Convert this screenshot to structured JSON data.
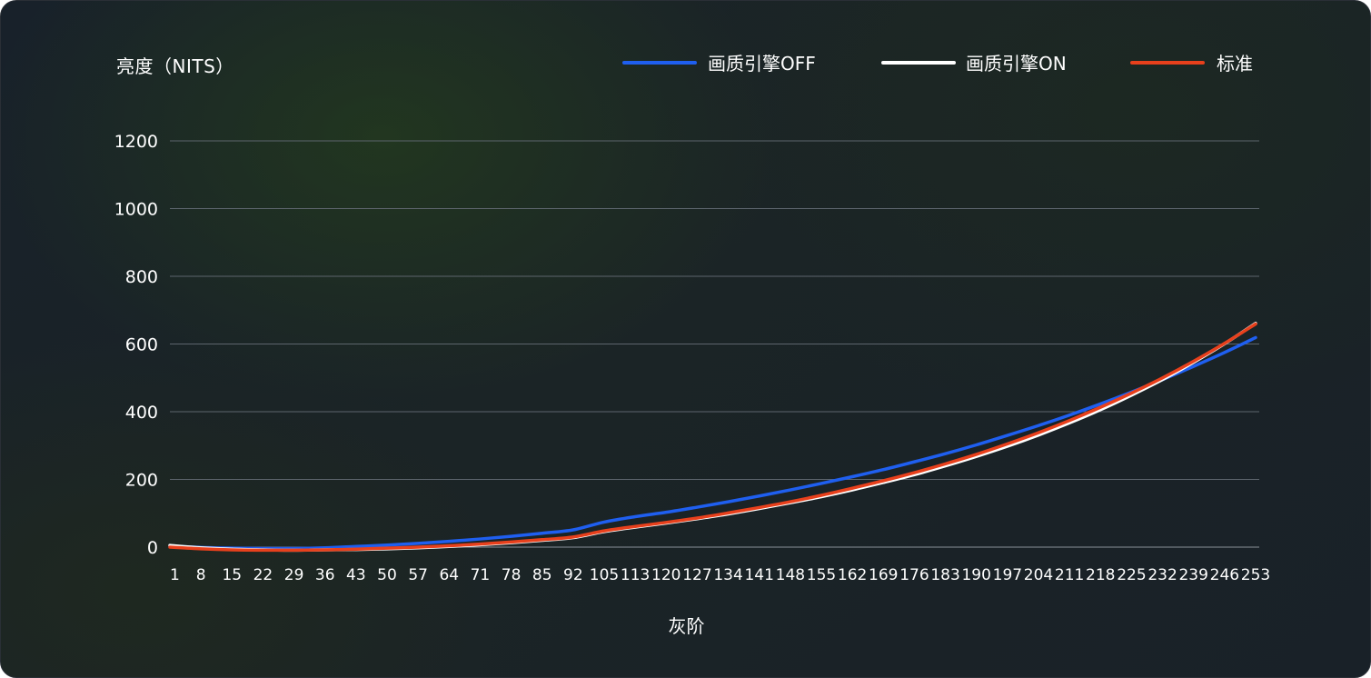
{
  "chart_data": {
    "type": "line",
    "ylabel": "亮度（NITS）",
    "xlabel": "灰阶",
    "ylim": [
      0,
      1200
    ],
    "yticks": [
      0,
      200,
      400,
      600,
      800,
      1000,
      1200
    ],
    "x": [
      1,
      8,
      15,
      22,
      29,
      36,
      43,
      50,
      57,
      64,
      71,
      78,
      85,
      92,
      105,
      113,
      120,
      127,
      134,
      141,
      148,
      155,
      162,
      169,
      176,
      183,
      190,
      197,
      204,
      211,
      218,
      225,
      232,
      239,
      246,
      253
    ],
    "legend_position": "top-right",
    "grid": true,
    "series": [
      {
        "name": "画质引擎OFF",
        "color": "#1f5ff0",
        "values": [
          3,
          -1,
          -3,
          -4,
          -4,
          -2,
          2,
          6,
          11,
          17,
          24,
          32,
          41,
          51,
          74,
          90,
          103,
          118,
          134,
          151,
          169,
          188,
          208,
          229,
          252,
          276,
          302,
          330,
          359,
          390,
          423,
          458,
          495,
          534,
          575,
          619
        ]
      },
      {
        "name": "画质引擎ON",
        "color": "#ffffff",
        "values": [
          5,
          -2,
          -6,
          -8,
          -9,
          -8,
          -7,
          -5,
          -2,
          2,
          7,
          13,
          20,
          28,
          46,
          59,
          71,
          84,
          98,
          114,
          131,
          149,
          169,
          191,
          214,
          240,
          268,
          298,
          331,
          367,
          406,
          449,
          495,
          546,
          601,
          661
        ]
      },
      {
        "name": "标准",
        "color": "#e8401c",
        "values": [
          0,
          -5,
          -8,
          -9,
          -9,
          -8,
          -6,
          -3,
          0,
          4,
          9,
          15,
          22,
          30,
          48,
          61,
          73,
          86,
          101,
          117,
          134,
          153,
          174,
          196,
          220,
          246,
          274,
          305,
          338,
          374,
          413,
          455,
          500,
          549,
          602,
          659
        ]
      }
    ]
  }
}
